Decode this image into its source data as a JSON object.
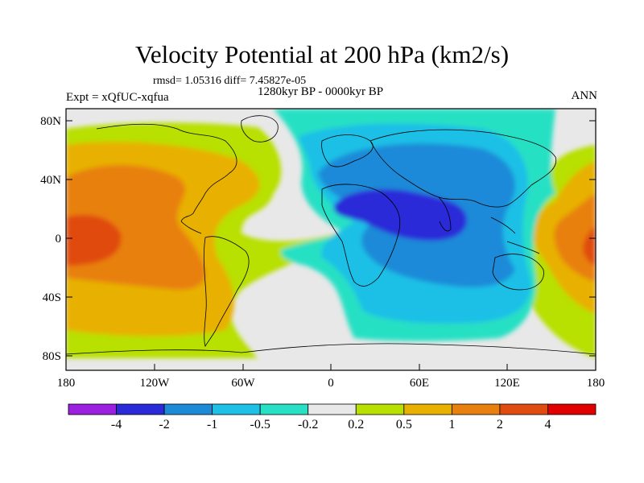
{
  "title": "Velocity Potential at 200 hPa (km2/s)",
  "stats": "rmsd= 1.05316 diff= 7.45827e-05",
  "period": "1280kyr BP - 0000kyr BP",
  "experiment": "Expt = xQfUC-xqfua",
  "season": "ANN",
  "lat_ticks": [
    "80N",
    "40N",
    "0",
    "40S",
    "80S"
  ],
  "lon_ticks": [
    "180",
    "120W",
    "60W",
    "0",
    "60E",
    "120E",
    "180"
  ],
  "legend": {
    "labels": [
      "-4",
      "-2",
      "-1",
      "-0.5",
      "-0.2",
      "0.2",
      "0.5",
      "1",
      "2",
      "4"
    ],
    "colors": [
      "#9b20e0",
      "#2a2ad8",
      "#1d8ad8",
      "#1fc0e6",
      "#28e0c4",
      "#e8e8e8",
      "#b8e000",
      "#e8b000",
      "#e88010",
      "#e04c10",
      "#e00000"
    ]
  }
}
